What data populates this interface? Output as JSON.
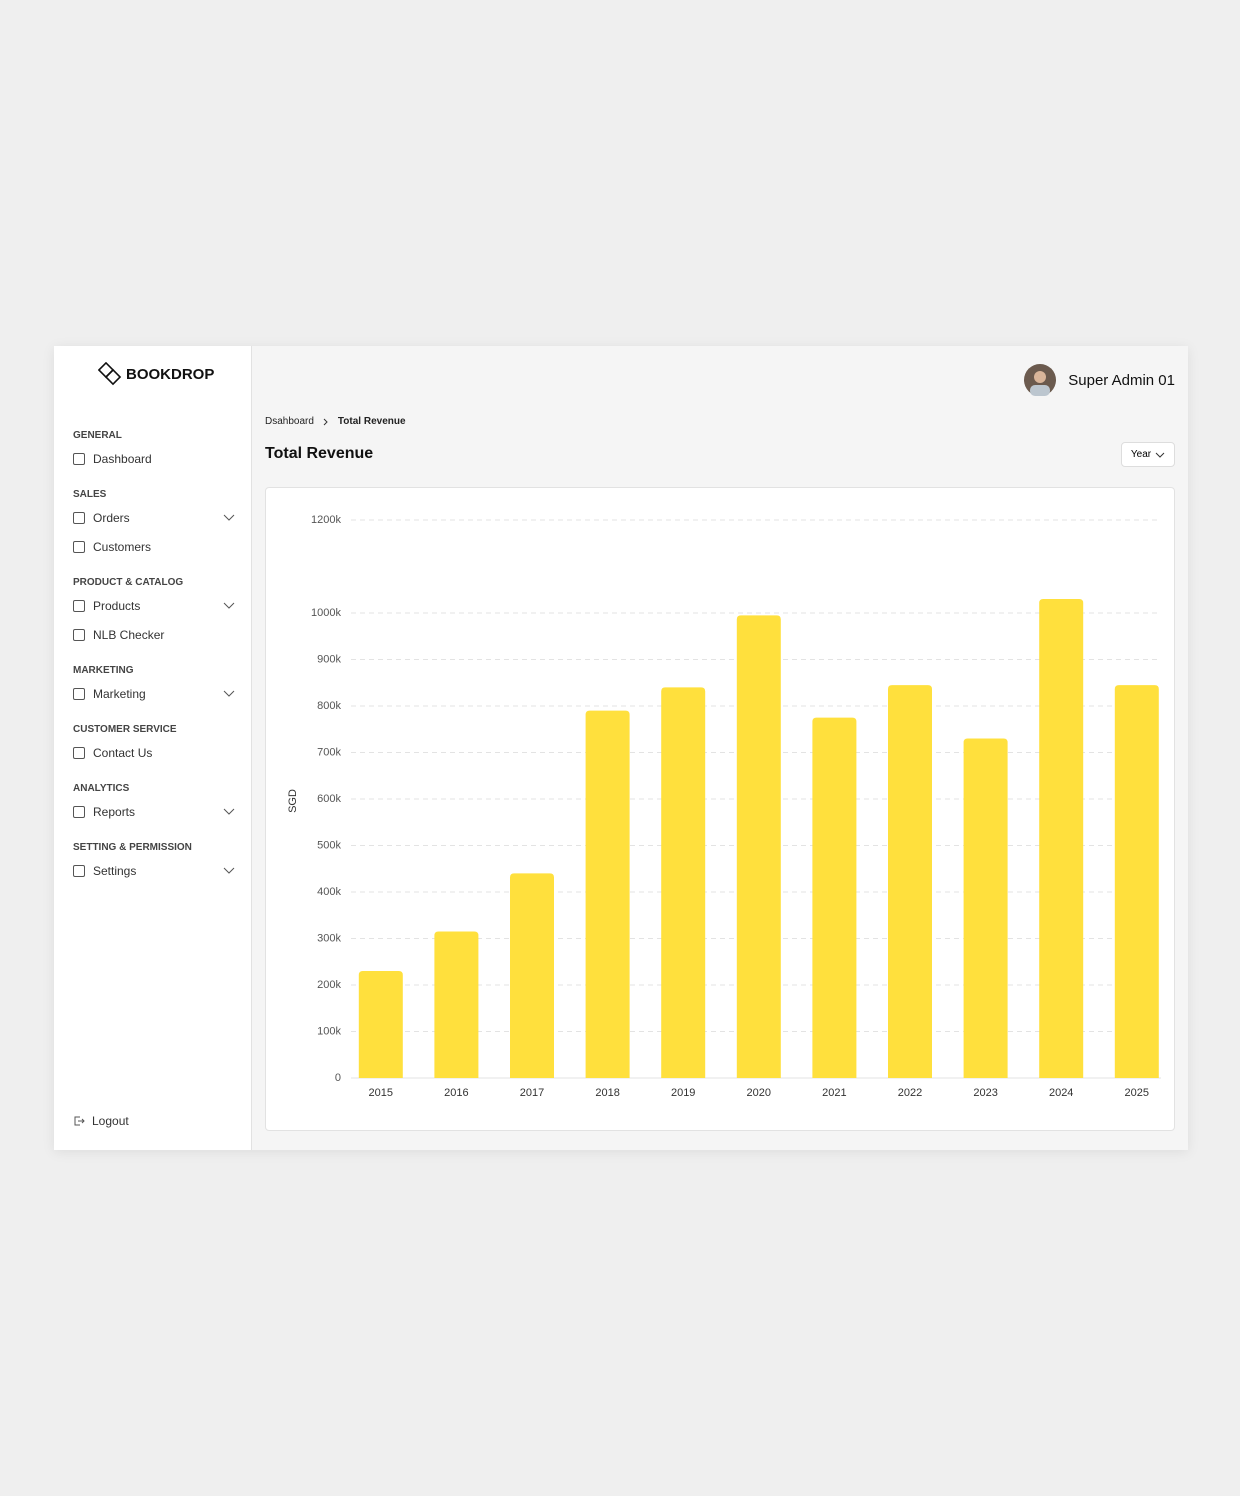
{
  "brand": "BOOKDROP",
  "nav": [
    {
      "section": "GENERAL",
      "items": [
        {
          "label": "Dashboard",
          "has_submenu": false
        }
      ]
    },
    {
      "section": "SALES",
      "items": [
        {
          "label": "Orders",
          "has_submenu": true
        },
        {
          "label": "Customers",
          "has_submenu": false
        }
      ]
    },
    {
      "section": "PRODUCT & CATALOG",
      "items": [
        {
          "label": "Products",
          "has_submenu": true
        },
        {
          "label": "NLB Checker",
          "has_submenu": false
        }
      ]
    },
    {
      "section": "MARKETING",
      "items": [
        {
          "label": "Marketing",
          "has_submenu": true
        }
      ]
    },
    {
      "section": "CUSTOMER SERVICE",
      "items": [
        {
          "label": "Contact Us",
          "has_submenu": false
        }
      ]
    },
    {
      "section": "ANALYTICS",
      "items": [
        {
          "label": "Reports",
          "has_submenu": true
        }
      ]
    },
    {
      "section": "SETTING & PERMISSION",
      "items": [
        {
          "label": "Settings",
          "has_submenu": true
        }
      ]
    }
  ],
  "logout": "Logout",
  "user": "Super Admin 01",
  "breadcrumb": [
    "Dsahboard",
    "Total Revenue"
  ],
  "page_title": "Total Revenue",
  "filter": "Year",
  "chart_data": {
    "type": "bar",
    "y_label": "SGD",
    "categories": [
      "2015",
      "2016",
      "2017",
      "2018",
      "2019",
      "2020",
      "2021",
      "2022",
      "2023",
      "2024",
      "2025"
    ],
    "values": [
      230000,
      315000,
      440000,
      790000,
      840000,
      995000,
      775000,
      845000,
      730000,
      1030000,
      845000
    ],
    "color": "#ffe03d",
    "ylim": [
      0,
      1200000
    ],
    "yticks": [
      0,
      {
        "value": 100000,
        "label": "100k"
      },
      {
        "value": 200000,
        "label": "200k"
      },
      {
        "value": 300000,
        "label": "300k"
      },
      {
        "value": 400000,
        "label": "400k"
      },
      {
        "value": 500000,
        "label": "500k"
      },
      {
        "value": 600000,
        "label": "600k"
      },
      {
        "value": 700000,
        "label": "700k"
      },
      {
        "value": 800000,
        "label": "800k"
      },
      {
        "value": 900000,
        "label": "900k"
      },
      {
        "value": 1000000,
        "label": "1000k"
      },
      {
        "value": 1200000,
        "label": "1200k"
      }
    ],
    "grid": true
  }
}
